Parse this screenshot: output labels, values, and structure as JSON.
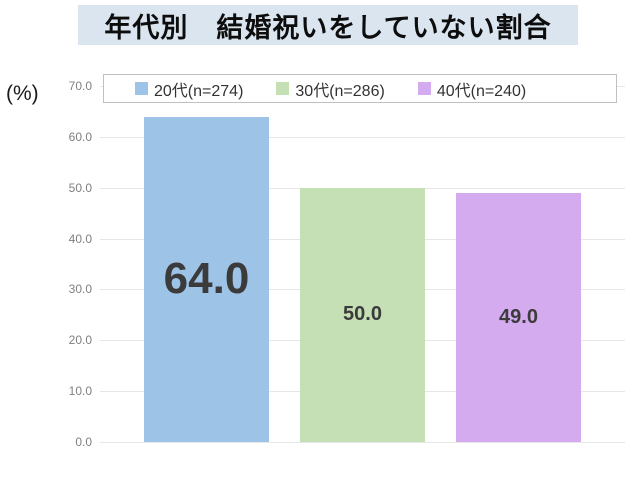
{
  "title": {
    "text": "年代別　結婚祝いをしていない割合",
    "background": "#DAE5F0"
  },
  "axis": {
    "unit_label": "(%)"
  },
  "legend": {
    "items": [
      {
        "label": "20代(n=274)",
        "color": "#9DC3E6"
      },
      {
        "label": "30代(n=286)",
        "color": "#C5E0B4"
      },
      {
        "label": "40代(n=240)",
        "color": "#D5ABF0"
      }
    ]
  },
  "chart_data": {
    "type": "bar",
    "title": "年代別　結婚祝いをしていない割合",
    "categories": [
      "20代(n=274)",
      "30代(n=286)",
      "40代(n=240)"
    ],
    "values": [
      64.0,
      50.0,
      49.0
    ],
    "value_labels": [
      "64.0",
      "50.0",
      "49.0"
    ],
    "colors": [
      "#9DC3E6",
      "#C5E0B4",
      "#D5ABF0"
    ],
    "xlabel": "",
    "ylabel": "(%)",
    "ylim": [
      0,
      70
    ],
    "ytick_step": 10,
    "ytick_labels": [
      "0.0",
      "10.0",
      "20.0",
      "30.0",
      "40.0",
      "50.0",
      "60.0",
      "70.0"
    ],
    "grid": true,
    "legend_position": "top"
  }
}
